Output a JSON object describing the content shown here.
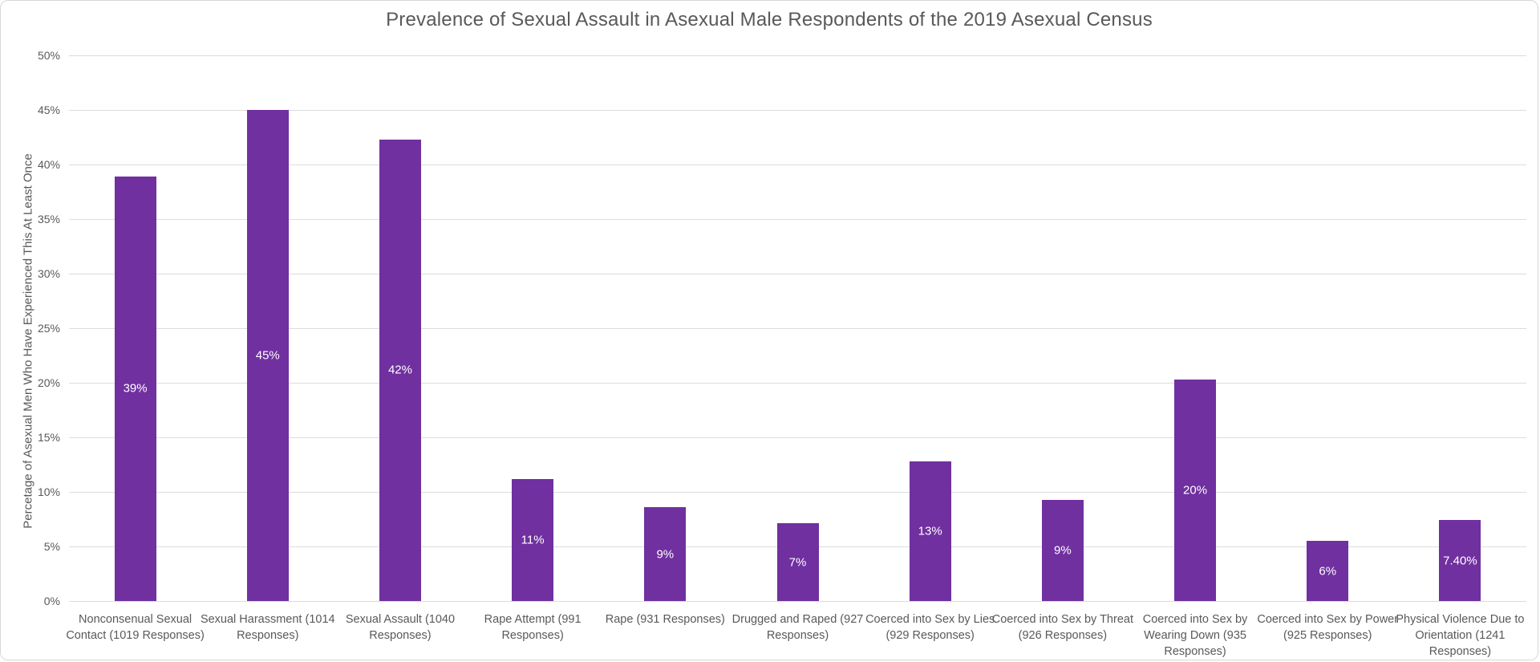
{
  "chart_data": {
    "type": "bar",
    "title": "Prevalence of Sexual Assault in Asexual Male Respondents of the 2019 Asexual Census",
    "xlabel": "",
    "ylabel": "Percetage of Asexual Men Who Have Experienced This At Least Once",
    "ylim": [
      0,
      50
    ],
    "ytick_step": 5,
    "yticks": [
      "0%",
      "5%",
      "10%",
      "15%",
      "20%",
      "25%",
      "30%",
      "35%",
      "40%",
      "45%",
      "50%"
    ],
    "grid": true,
    "legend": false,
    "bar_color": "#7030A0",
    "value_label_color": "#FFFFFF",
    "text_color": "#595959",
    "gridline_color": "#DCDCDC",
    "categories": [
      "Nonconsenual Sexual Contact (1019 Responses)",
      "Sexual Harassment (1014 Responses)",
      "Sexual Assault (1040 Responses)",
      "Rape Attempt (991 Responses)",
      "Rape (931 Responses)",
      "Drugged and Raped (927 Responses)",
      "Coerced into Sex by Lies (929 Responses)",
      "Coerced into Sex by Threat (926 Responses)",
      "Coerced into Sex by Wearing Down (935 Responses)",
      "Coerced into Sex by Power (925 Responses)",
      "Physical Violence Due to Orientation (1241 Responses)"
    ],
    "values": [
      38.9,
      45.0,
      42.3,
      11.2,
      8.6,
      7.1,
      12.8,
      9.3,
      20.3,
      5.5,
      7.4
    ],
    "value_labels": [
      "39%",
      "45%",
      "42%",
      "11%",
      "9%",
      "7%",
      "13%",
      "9%",
      "20%",
      "6%",
      "7.40%"
    ]
  }
}
